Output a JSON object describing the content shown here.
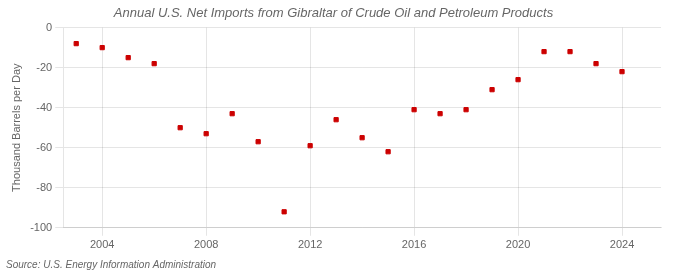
{
  "chart_data": {
    "type": "scatter",
    "title": "Annual U.S. Net Imports from Gibraltar of Crude Oil and Petroleum Products",
    "ylabel": "Thousand Barrels per Day",
    "annotations": [
      "Source: U.S. Energy Information Administration"
    ],
    "x": [
      2003,
      2004,
      2005,
      2006,
      2007,
      2008,
      2009,
      2010,
      2011,
      2012,
      2013,
      2014,
      2015,
      2016,
      2017,
      2018,
      2019,
      2020,
      2021,
      2022,
      2023,
      2024
    ],
    "values": [
      -8,
      -10,
      -15,
      -18,
      -50,
      -53,
      -43,
      -57,
      -92,
      -59,
      -46,
      -55,
      -62,
      -41,
      -43,
      -41,
      -31,
      -26,
      -12,
      -12,
      -18,
      -22
    ],
    "color": "#cc0000",
    "marker": "square",
    "xlim": [
      2002.5,
      2025.5
    ],
    "ylim": [
      -100,
      0
    ],
    "xticks": [
      2004,
      2008,
      2012,
      2016,
      2020,
      2024
    ],
    "yticks": [
      0,
      -20,
      -40,
      -60,
      -80,
      -100
    ],
    "grid": true
  }
}
